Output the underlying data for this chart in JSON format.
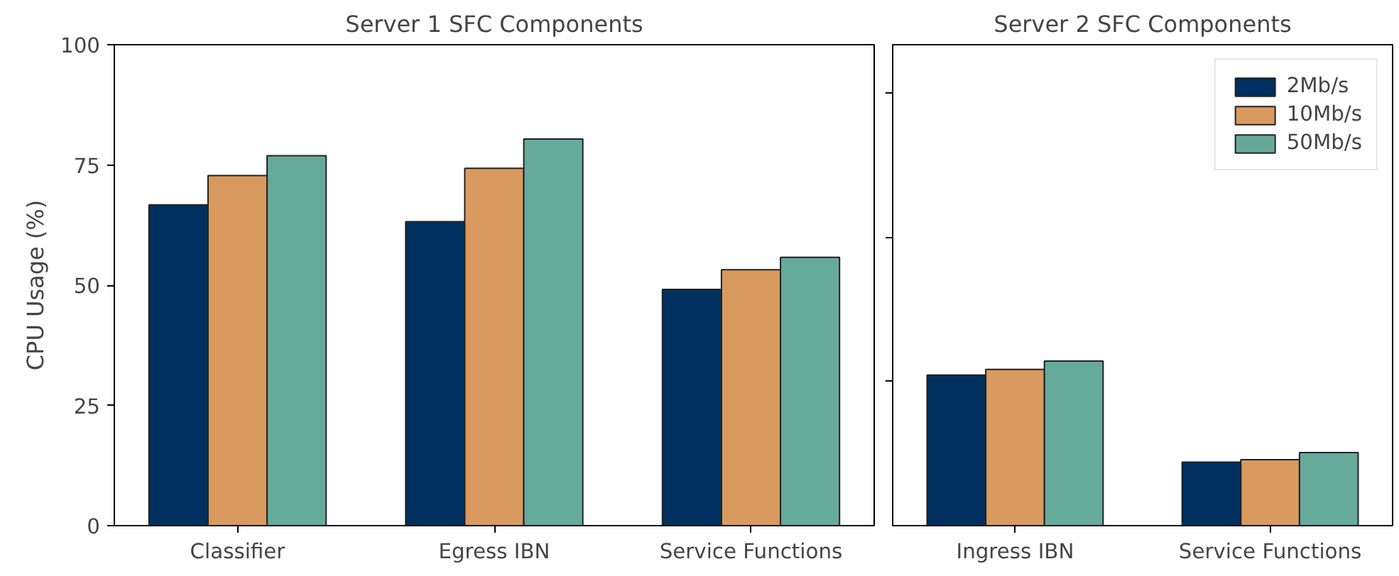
{
  "chart_data": [
    {
      "type": "bar",
      "title": "Server 1 SFC Components",
      "ylabel": "CPU Usage (%)",
      "categories": [
        "Classifier",
        "Egress IBN",
        "Service Functions"
      ],
      "ylim": [
        0,
        100
      ],
      "yticks": [
        0,
        25,
        50,
        75,
        100
      ],
      "grid": false,
      "legend": false,
      "series": [
        {
          "color": "#00305f",
          "values": [
            66.7,
            63.2,
            49.1
          ]
        },
        {
          "color": "#d89a5f",
          "values": [
            72.8,
            74.3,
            53.2
          ]
        },
        {
          "color": "#66aa9c",
          "values": [
            76.9,
            80.4,
            55.8
          ]
        }
      ]
    },
    {
      "type": "bar",
      "title": "Server 2 SFC Components",
      "categories": [
        "Ingress IBN",
        "Service Functions"
      ],
      "ylim": [
        0,
        100
      ],
      "yticks": [
        {
          "value": 30,
          "label": null
        },
        {
          "value": 60,
          "label": null
        },
        {
          "value": 90,
          "label": null
        }
      ],
      "tick_labels": "x",
      "grid": false,
      "legend": "top right",
      "series": [
        {
          "name": "2Mb/s",
          "color": "#00305f",
          "values": [
            31.3,
            13.2
          ]
        },
        {
          "name": "10Mb/s",
          "color": "#d89a5f",
          "values": [
            32.5,
            13.7
          ]
        },
        {
          "name": "50Mb/s",
          "color": "#66aa9c",
          "values": [
            34.2,
            15.2
          ]
        }
      ]
    }
  ]
}
